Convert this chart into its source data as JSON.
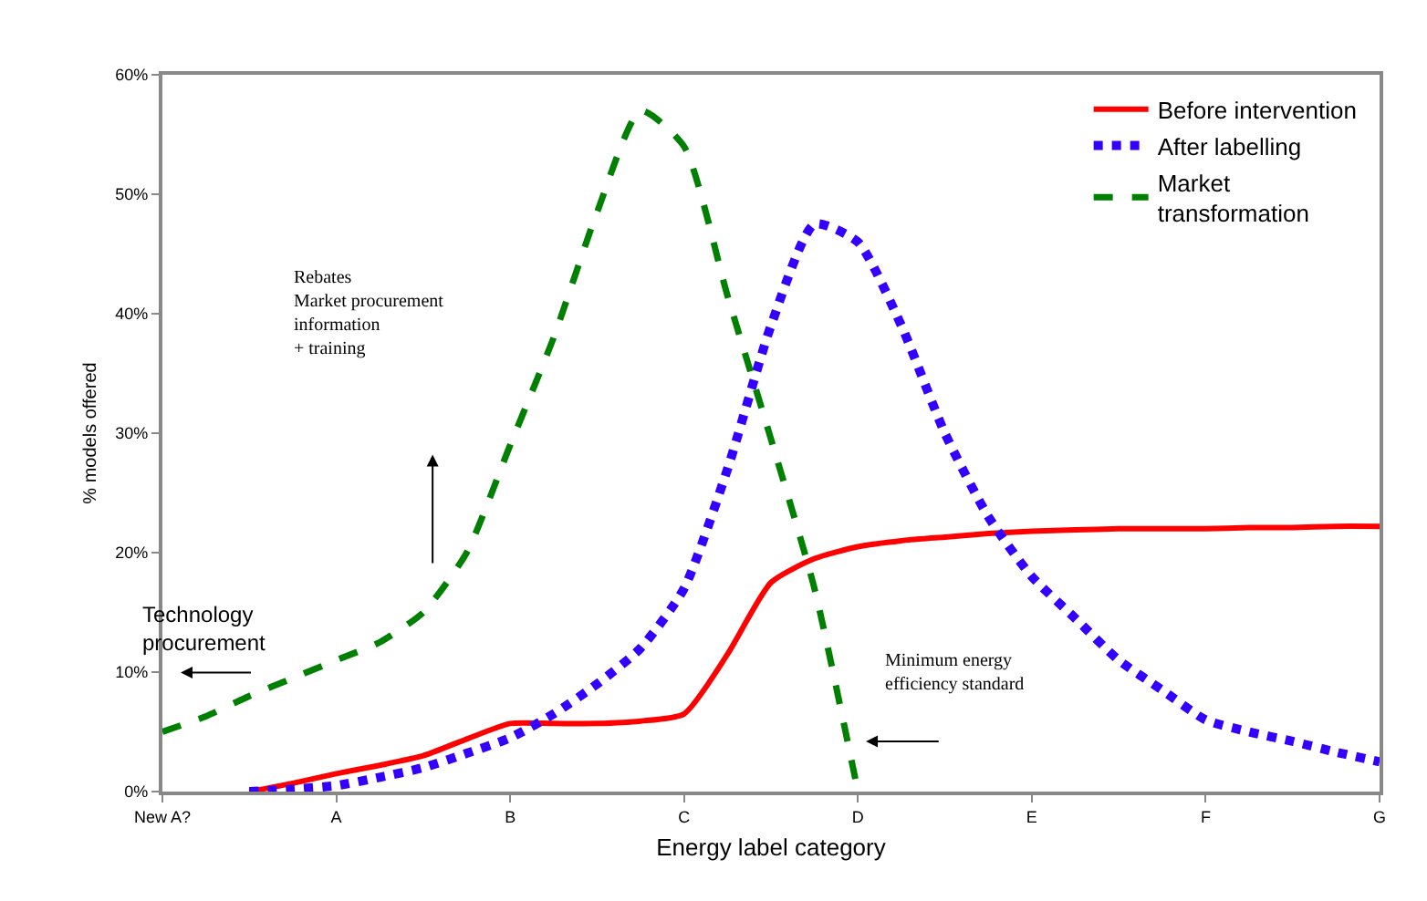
{
  "chart_data": {
    "type": "line",
    "xlabel": "Energy label category",
    "ylabel": "% models offered",
    "categories": [
      "New A?",
      null,
      null,
      null,
      "A",
      null,
      null,
      null,
      "B",
      null,
      null,
      null,
      "C",
      null,
      null,
      null,
      "D",
      null,
      null,
      null,
      "E",
      null,
      null,
      null,
      "F",
      null,
      null,
      null,
      "G"
    ],
    "ylim": [
      0,
      60
    ],
    "yticks": [
      {
        "value": 0,
        "label": "0%"
      },
      {
        "value": 10,
        "label": "10%"
      },
      {
        "value": 20,
        "label": "20%"
      },
      {
        "value": 30,
        "label": "30%"
      },
      {
        "value": 40,
        "label": "40%"
      },
      {
        "value": 50,
        "label": "50%"
      },
      {
        "value": 60,
        "label": "60%"
      }
    ],
    "grid": false,
    "legend": "top right",
    "marker": "none",
    "series": [
      {
        "name": "Before intervention",
        "color": "#ff0000",
        "line_style": "solid",
        "values": [
          null,
          null,
          0,
          0.7,
          1.5,
          2.2,
          3,
          4.4,
          5.7,
          5.7,
          5.7,
          5.9,
          6.5,
          11.5,
          17.5,
          19.5,
          20.5,
          21,
          21.3,
          21.6,
          21.8,
          21.9,
          22,
          22,
          22,
          22.1,
          22.1,
          22.2,
          22.2
        ]
      },
      {
        "name": "After labelling",
        "color": "#3300ff",
        "line_style": "dotted",
        "values": [
          null,
          null,
          0,
          0.2,
          0.5,
          1.2,
          2,
          3.2,
          4.5,
          6.5,
          9,
          12,
          17,
          27,
          39,
          47.5,
          46,
          39,
          30,
          23,
          18,
          14.5,
          11,
          8.5,
          6,
          5,
          4.2,
          3.3,
          2.5
        ]
      },
      {
        "name": "Market transformation",
        "color": "#008000",
        "line_style": "dashed",
        "values": [
          5,
          6.3,
          8,
          9.5,
          11,
          12.5,
          15,
          20,
          29,
          38,
          48.5,
          57,
          54,
          41.5,
          29.5,
          17,
          0,
          null,
          null,
          null,
          null,
          null,
          null,
          null,
          null,
          null,
          null,
          null,
          null
        ]
      }
    ],
    "annotations": [
      "Rebates\nMarket procurement\ninformation\n+ training",
      "Technology\nprocurement",
      "Minimum energy\nefficiency standard"
    ]
  }
}
